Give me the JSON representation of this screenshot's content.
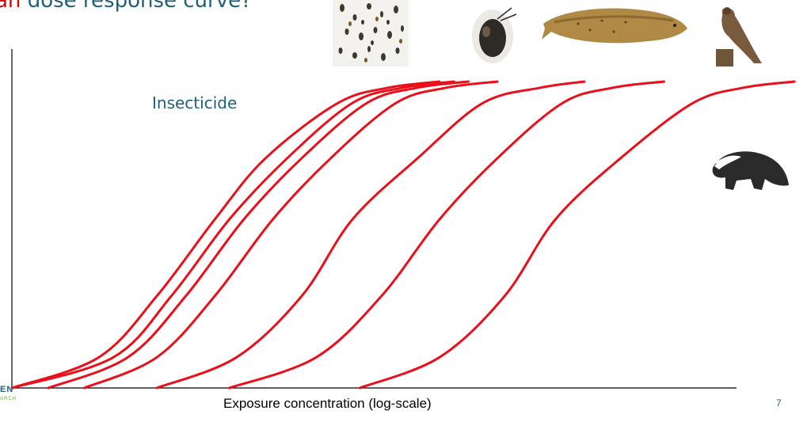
{
  "slide": {
    "title_accent": "an",
    "title_rest": "dose response curve?",
    "page_number": "7",
    "logo_text": "EN",
    "logo_subtext": "ARCH"
  },
  "organism_icons": [
    "insects-icon",
    "water-flea-icon",
    "trout-icon",
    "bird-of-prey-icon",
    "badger-icon"
  ],
  "colors": {
    "curve": "#e8101a",
    "title": "#1f5f7a",
    "accent": "#e00000",
    "axis": "#000000"
  },
  "chart_data": {
    "type": "line",
    "title": "",
    "xlabel": "Exposure concentration (log-scale)",
    "ylabel": "",
    "xscale": "log",
    "annotations": [
      "Insecticide"
    ],
    "grid": false,
    "x_range": [
      0,
      100
    ],
    "y_range": [
      0,
      100
    ],
    "series": [
      {
        "x": [
          0,
          12,
          20,
          28,
          35,
          45,
          52,
          59
        ],
        "y": [
          0,
          10,
          30,
          55,
          75,
          93,
          98,
          100
        ]
      },
      {
        "x": [
          0,
          14,
          22,
          30,
          38,
          47,
          54,
          61
        ],
        "y": [
          0,
          10,
          30,
          55,
          75,
          93,
          98,
          100
        ]
      },
      {
        "x": [
          5,
          16,
          24,
          32,
          40,
          49,
          56,
          63
        ],
        "y": [
          0,
          10,
          30,
          55,
          75,
          93,
          98,
          100
        ]
      },
      {
        "x": [
          10,
          20,
          28,
          36,
          44,
          53,
          60,
          67
        ],
        "y": [
          0,
          10,
          30,
          55,
          75,
          93,
          98,
          100
        ]
      },
      {
        "x": [
          20,
          31,
          40,
          47,
          56,
          65,
          73,
          79
        ],
        "y": [
          0,
          10,
          30,
          55,
          75,
          93,
          98,
          100
        ]
      },
      {
        "x": [
          30,
          42,
          51,
          59,
          67,
          76,
          83,
          90
        ],
        "y": [
          0,
          10,
          30,
          55,
          75,
          93,
          98,
          100
        ]
      },
      {
        "x": [
          48,
          59,
          68,
          75,
          84,
          94,
          101,
          108
        ],
        "y": [
          0,
          10,
          30,
          55,
          75,
          93,
          98,
          100
        ]
      }
    ]
  }
}
